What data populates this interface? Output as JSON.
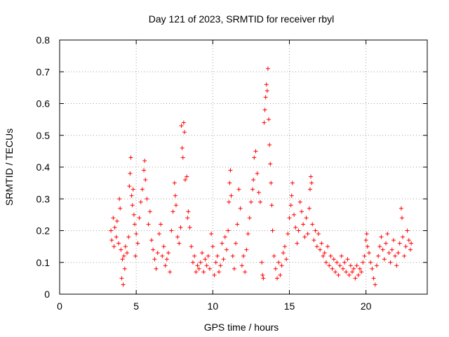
{
  "chart_data": {
    "type": "scatter",
    "title": "Day 121 of 2023, SRMTID for receiver rbyl",
    "xlabel": "GPS time / hours",
    "ylabel": "SRMTID / TECUs",
    "xlim": [
      0,
      24
    ],
    "ylim": [
      0,
      0.8
    ],
    "xticks": [
      "0",
      "5",
      "10",
      "15",
      "20"
    ],
    "yticks": [
      "0",
      "0.1",
      "0.2",
      "0.3",
      "0.4",
      "0.5",
      "0.6",
      "0.7",
      "0.8"
    ],
    "grid": true,
    "marker": "+",
    "color": "#ff0000",
    "series": [
      {
        "name": "SRMTID",
        "points": [
          [
            3.35,
            0.2
          ],
          [
            3.4,
            0.17
          ],
          [
            3.5,
            0.24
          ],
          [
            3.55,
            0.15
          ],
          [
            3.6,
            0.21
          ],
          [
            3.7,
            0.18
          ],
          [
            3.75,
            0.23
          ],
          [
            3.85,
            0.16
          ],
          [
            3.9,
            0.3
          ],
          [
            3.95,
            0.27
          ],
          [
            4.0,
            0.14
          ],
          [
            4.05,
            0.05
          ],
          [
            4.1,
            0.11
          ],
          [
            4.15,
            0.03
          ],
          [
            4.2,
            0.12
          ],
          [
            4.25,
            0.08
          ],
          [
            4.3,
            0.15
          ],
          [
            4.4,
            0.13
          ],
          [
            4.5,
            0.18
          ],
          [
            4.55,
            0.34
          ],
          [
            4.6,
            0.38
          ],
          [
            4.65,
            0.43
          ],
          [
            4.7,
            0.31
          ],
          [
            4.75,
            0.28
          ],
          [
            4.8,
            0.33
          ],
          [
            4.85,
            0.25
          ],
          [
            4.9,
            0.22
          ],
          [
            4.95,
            0.12
          ],
          [
            5.0,
            0.19
          ],
          [
            5.1,
            0.16
          ],
          [
            5.2,
            0.24
          ],
          [
            5.3,
            0.29
          ],
          [
            5.4,
            0.33
          ],
          [
            5.5,
            0.39
          ],
          [
            5.55,
            0.42
          ],
          [
            5.6,
            0.36
          ],
          [
            5.7,
            0.3
          ],
          [
            5.8,
            0.22
          ],
          [
            5.9,
            0.26
          ],
          [
            6.0,
            0.17
          ],
          [
            6.1,
            0.14
          ],
          [
            6.2,
            0.11
          ],
          [
            6.3,
            0.08
          ],
          [
            6.4,
            0.13
          ],
          [
            6.5,
            0.19
          ],
          [
            6.6,
            0.22
          ],
          [
            6.7,
            0.12
          ],
          [
            6.8,
            0.15
          ],
          [
            6.9,
            0.09
          ],
          [
            7.0,
            0.11
          ],
          [
            7.1,
            0.13
          ],
          [
            7.2,
            0.07
          ],
          [
            7.3,
            0.2
          ],
          [
            7.4,
            0.26
          ],
          [
            7.5,
            0.35
          ],
          [
            7.55,
            0.31
          ],
          [
            7.6,
            0.28
          ],
          [
            7.7,
            0.18
          ],
          [
            7.8,
            0.16
          ],
          [
            7.9,
            0.21
          ],
          [
            7.95,
            0.53
          ],
          [
            8.0,
            0.46
          ],
          [
            8.05,
            0.43
          ],
          [
            8.1,
            0.54
          ],
          [
            8.15,
            0.51
          ],
          [
            8.2,
            0.36
          ],
          [
            8.3,
            0.37
          ],
          [
            8.35,
            0.24
          ],
          [
            8.4,
            0.26
          ],
          [
            8.5,
            0.21
          ],
          [
            8.6,
            0.15
          ],
          [
            8.7,
            0.1
          ],
          [
            8.8,
            0.12
          ],
          [
            8.9,
            0.07
          ],
          [
            9.0,
            0.09
          ],
          [
            9.1,
            0.08
          ],
          [
            9.2,
            0.1
          ],
          [
            9.3,
            0.13
          ],
          [
            9.4,
            0.07
          ],
          [
            9.5,
            0.11
          ],
          [
            9.6,
            0.09
          ],
          [
            9.7,
            0.12
          ],
          [
            9.8,
            0.08
          ],
          [
            9.9,
            0.19
          ],
          [
            10.0,
            0.15
          ],
          [
            10.1,
            0.06
          ],
          [
            10.2,
            0.1
          ],
          [
            10.3,
            0.12
          ],
          [
            10.4,
            0.07
          ],
          [
            10.5,
            0.09
          ],
          [
            10.6,
            0.16
          ],
          [
            10.7,
            0.11
          ],
          [
            10.8,
            0.18
          ],
          [
            10.9,
            0.14
          ],
          [
            11.0,
            0.2
          ],
          [
            11.05,
            0.29
          ],
          [
            11.1,
            0.35
          ],
          [
            11.15,
            0.39
          ],
          [
            11.2,
            0.31
          ],
          [
            11.3,
            0.12
          ],
          [
            11.4,
            0.08
          ],
          [
            11.5,
            0.16
          ],
          [
            11.6,
            0.22
          ],
          [
            11.7,
            0.33
          ],
          [
            11.8,
            0.27
          ],
          [
            11.9,
            0.09
          ],
          [
            12.0,
            0.12
          ],
          [
            12.1,
            0.07
          ],
          [
            12.2,
            0.14
          ],
          [
            12.3,
            0.19
          ],
          [
            12.4,
            0.24
          ],
          [
            12.5,
            0.29
          ],
          [
            12.6,
            0.33
          ],
          [
            12.65,
            0.36
          ],
          [
            12.7,
            0.43
          ],
          [
            12.8,
            0.45
          ],
          [
            12.9,
            0.38
          ],
          [
            13.0,
            0.32
          ],
          [
            13.1,
            0.29
          ],
          [
            13.2,
            0.1
          ],
          [
            13.25,
            0.06
          ],
          [
            13.3,
            0.05
          ],
          [
            13.35,
            0.54
          ],
          [
            13.4,
            0.58
          ],
          [
            13.45,
            0.62
          ],
          [
            13.5,
            0.66
          ],
          [
            13.55,
            0.64
          ],
          [
            13.6,
            0.71
          ],
          [
            13.65,
            0.55
          ],
          [
            13.7,
            0.47
          ],
          [
            13.75,
            0.41
          ],
          [
            13.8,
            0.35
          ],
          [
            13.85,
            0.28
          ],
          [
            13.9,
            0.2
          ],
          [
            14.0,
            0.12
          ],
          [
            14.1,
            0.08
          ],
          [
            14.2,
            0.05
          ],
          [
            14.3,
            0.1
          ],
          [
            14.4,
            0.06
          ],
          [
            14.5,
            0.09
          ],
          [
            14.6,
            0.13
          ],
          [
            14.7,
            0.15
          ],
          [
            14.8,
            0.11
          ],
          [
            14.9,
            0.19
          ],
          [
            15.0,
            0.24
          ],
          [
            15.1,
            0.28
          ],
          [
            15.15,
            0.31
          ],
          [
            15.2,
            0.35
          ],
          [
            15.3,
            0.25
          ],
          [
            15.4,
            0.21
          ],
          [
            15.5,
            0.16
          ],
          [
            15.6,
            0.2
          ],
          [
            15.7,
            0.29
          ],
          [
            15.8,
            0.26
          ],
          [
            15.9,
            0.22
          ],
          [
            16.0,
            0.18
          ],
          [
            16.1,
            0.24
          ],
          [
            16.2,
            0.19
          ],
          [
            16.3,
            0.27
          ],
          [
            16.35,
            0.33
          ],
          [
            16.4,
            0.37
          ],
          [
            16.45,
            0.35
          ],
          [
            16.5,
            0.22
          ],
          [
            16.6,
            0.17
          ],
          [
            16.7,
            0.2
          ],
          [
            16.8,
            0.15
          ],
          [
            16.9,
            0.19
          ],
          [
            17.0,
            0.14
          ],
          [
            17.1,
            0.16
          ],
          [
            17.2,
            0.12
          ],
          [
            17.3,
            0.13
          ],
          [
            17.4,
            0.1
          ],
          [
            17.5,
            0.15
          ],
          [
            17.6,
            0.09
          ],
          [
            17.7,
            0.12
          ],
          [
            17.8,
            0.08
          ],
          [
            17.9,
            0.11
          ],
          [
            18.0,
            0.07
          ],
          [
            18.1,
            0.1
          ],
          [
            18.2,
            0.06
          ],
          [
            18.3,
            0.09
          ],
          [
            18.4,
            0.12
          ],
          [
            18.5,
            0.08
          ],
          [
            18.6,
            0.1
          ],
          [
            18.7,
            0.07
          ],
          [
            18.8,
            0.11
          ],
          [
            18.9,
            0.06
          ],
          [
            19.0,
            0.09
          ],
          [
            19.1,
            0.07
          ],
          [
            19.2,
            0.08
          ],
          [
            19.3,
            0.05
          ],
          [
            19.4,
            0.09
          ],
          [
            19.5,
            0.06
          ],
          [
            19.6,
            0.08
          ],
          [
            19.7,
            0.07
          ],
          [
            19.8,
            0.1
          ],
          [
            19.9,
            0.12
          ],
          [
            20.0,
            0.17
          ],
          [
            20.05,
            0.19
          ],
          [
            20.1,
            0.15
          ],
          [
            20.2,
            0.13
          ],
          [
            20.3,
            0.1
          ],
          [
            20.4,
            0.08
          ],
          [
            20.5,
            0.05
          ],
          [
            20.6,
            0.03
          ],
          [
            20.7,
            0.09
          ],
          [
            20.8,
            0.12
          ],
          [
            20.9,
            0.15
          ],
          [
            21.0,
            0.18
          ],
          [
            21.1,
            0.14
          ],
          [
            21.2,
            0.11
          ],
          [
            21.3,
            0.16
          ],
          [
            21.4,
            0.19
          ],
          [
            21.5,
            0.13
          ],
          [
            21.6,
            0.1
          ],
          [
            21.7,
            0.14
          ],
          [
            21.8,
            0.17
          ],
          [
            21.9,
            0.12
          ],
          [
            22.0,
            0.09
          ],
          [
            22.1,
            0.13
          ],
          [
            22.2,
            0.16
          ],
          [
            22.3,
            0.27
          ],
          [
            22.35,
            0.24
          ],
          [
            22.4,
            0.18
          ],
          [
            22.5,
            0.12
          ],
          [
            22.6,
            0.15
          ],
          [
            22.7,
            0.2
          ],
          [
            22.8,
            0.17
          ],
          [
            22.9,
            0.14
          ],
          [
            22.95,
            0.16
          ]
        ]
      }
    ]
  }
}
